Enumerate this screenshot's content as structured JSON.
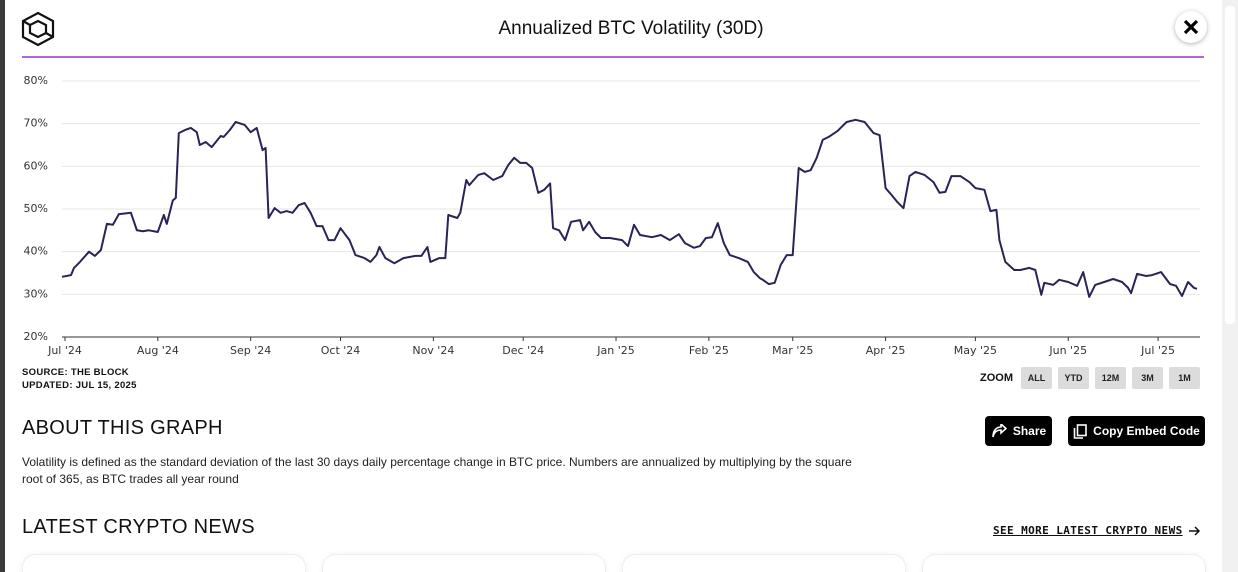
{
  "header": {
    "title": "Annualized BTC Volatility (30D)"
  },
  "chart_data": {
    "type": "line",
    "color": "#2b2257",
    "grid": true,
    "x": [
      -1,
      2,
      3,
      5,
      8,
      10,
      12,
      14,
      16,
      18,
      22,
      24,
      26,
      28,
      31,
      33,
      34,
      36,
      37,
      38,
      40,
      42,
      44,
      45,
      47,
      49,
      52,
      53,
      55,
      57,
      60,
      62,
      64,
      66,
      67,
      68,
      70,
      72,
      74,
      76,
      78,
      80,
      82,
      84,
      86,
      88,
      90,
      92,
      95,
      97,
      100,
      102,
      104,
      105,
      107,
      110,
      113,
      117,
      119,
      121,
      122,
      125,
      127,
      128,
      131,
      132,
      134,
      135,
      138,
      140,
      143,
      146,
      148,
      150,
      152,
      154,
      156,
      158,
      160,
      162,
      163,
      165,
      167,
      169,
      172,
      173,
      175,
      177,
      179,
      182,
      186,
      188,
      190,
      192,
      196,
      199,
      202,
      205,
      207,
      210,
      212,
      214,
      216,
      218,
      220,
      222,
      225,
      228,
      230,
      232,
      233,
      235,
      237,
      239,
      241,
      243,
      245,
      247,
      249,
      251,
      253,
      255,
      258,
      261,
      264,
      267,
      270,
      272,
      274,
      276,
      278,
      280,
      282,
      284,
      287,
      290,
      292,
      294,
      296,
      299,
      302,
      304,
      307,
      309,
      311,
      312,
      314,
      317,
      319,
      322,
      324,
      326,
      327,
      330,
      332,
      335,
      338,
      340,
      342,
      344,
      347,
      350,
      353,
      355,
      356,
      358,
      361,
      363,
      366,
      369,
      371,
      373,
      375,
      377,
      378
    ],
    "values": [
      34.1,
      34.5,
      36.2,
      37.6,
      40,
      39,
      40.4,
      46.5,
      46.3,
      48.8,
      49.1,
      45,
      44.8,
      45,
      44.6,
      48.6,
      46.5,
      52,
      52.6,
      67.8,
      68.5,
      69,
      68,
      65,
      65.7,
      64.5,
      67.1,
      66.9,
      68.5,
      70.4,
      69.7,
      68,
      69,
      63.8,
      64.3,
      47.9,
      50.2,
      49.1,
      49.5,
      49.1,
      50.9,
      51.4,
      49.1,
      46,
      46,
      42.7,
      42.7,
      45.5,
      42.7,
      39.2,
      38.5,
      37.6,
      39.2,
      41.1,
      38.5,
      37.3,
      38.5,
      39,
      39,
      41.1,
      37.6,
      38.5,
      38.5,
      48.6,
      47.9,
      49.1,
      56.8,
      55.6,
      58,
      58.4,
      56.8,
      57.7,
      60.3,
      62,
      60.8,
      60.8,
      59.6,
      53.8,
      54.5,
      56,
      45.5,
      45,
      42.7,
      47,
      47.4,
      45,
      47,
      44.6,
      43.2,
      43.2,
      42.7,
      41.3,
      46.3,
      43.9,
      43.4,
      43.9,
      42.7,
      44.1,
      42,
      40.9,
      41.3,
      43.2,
      43.4,
      46.7,
      42,
      39.2,
      38.5,
      37.6,
      35.2,
      33.8,
      33.4,
      32.4,
      32.7,
      36.9,
      39.2,
      39.2,
      59.6,
      58.7,
      59.1,
      62,
      66.2,
      66.9,
      68.3,
      70.4,
      70.9,
      70.4,
      67.8,
      67.3,
      54.9,
      53.3,
      51.6,
      50.2,
      57.7,
      58.7,
      58,
      56.3,
      53.8,
      54,
      57.7,
      57.7,
      56.3,
      54.9,
      54.5,
      49.5,
      49.8,
      42.7,
      37.6,
      35.7,
      35.7,
      36.2,
      35.7,
      29.9,
      32.7,
      32.2,
      33.4,
      32.9,
      32,
      35.2,
      29.4,
      32.2,
      32.9,
      33.6,
      32.9,
      31.5,
      30.3,
      34.8,
      34.3,
      34.5,
      35.2,
      32.4,
      32,
      29.6,
      32.9,
      31.5,
      31.3
    ],
    "xlim": [
      -1,
      379
    ],
    "ylim": [
      20,
      80
    ],
    "xticks": [
      {
        "value": 0,
        "label": "Jul '24"
      },
      {
        "value": 31,
        "label": "Aug '24"
      },
      {
        "value": 62,
        "label": "Sep '24"
      },
      {
        "value": 92,
        "label": "Oct '24"
      },
      {
        "value": 123,
        "label": "Nov '24"
      },
      {
        "value": 153,
        "label": "Dec '24"
      },
      {
        "value": 184,
        "label": "Jan '25"
      },
      {
        "value": 215,
        "label": "Feb '25"
      },
      {
        "value": 243,
        "label": "Mar '25"
      },
      {
        "value": 274,
        "label": "Apr '25"
      },
      {
        "value": 304,
        "label": "May '25"
      },
      {
        "value": 335,
        "label": "Jun '25"
      },
      {
        "value": 365,
        "label": "Jul '25"
      }
    ],
    "yticks": [
      {
        "value": 20,
        "label": "20%"
      },
      {
        "value": 30,
        "label": "30%"
      },
      {
        "value": 40,
        "label": "40%"
      },
      {
        "value": 50,
        "label": "50%"
      },
      {
        "value": 60,
        "label": "60%"
      },
      {
        "value": 70,
        "label": "70%"
      },
      {
        "value": 80,
        "label": "80%"
      }
    ]
  },
  "source": "SOURCE: THE BLOCK",
  "updated": "UPDATED: JUL 15, 2025",
  "zoom": {
    "label": "ZOOM",
    "options": [
      "ALL",
      "YTD",
      "12M",
      "3M",
      "1M"
    ]
  },
  "about": {
    "title": "ABOUT THIS GRAPH",
    "text": "Volatility is defined as the standard deviation of the last 30 days daily percentage change in BTC price. Numbers are annualized by multiplying by the square root of 365, as BTC trades all year round"
  },
  "buttons": [
    "Share",
    "Copy Embed Code"
  ],
  "news": {
    "title": "LATEST CRYPTO NEWS",
    "link": "SEE MORE LATEST CRYPTO NEWS"
  }
}
